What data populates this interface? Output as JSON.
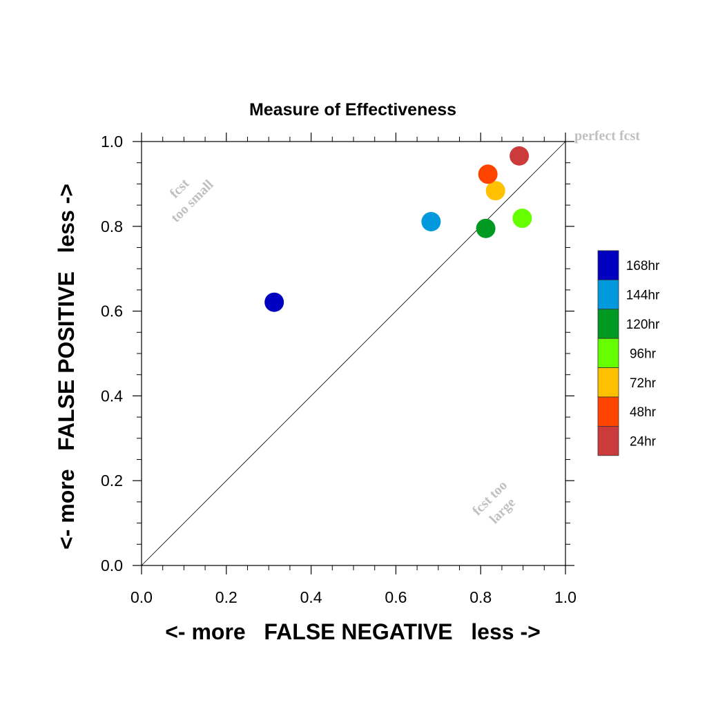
{
  "chart_data": {
    "type": "scatter",
    "title": "Measure of Effectiveness",
    "xlabel": "<- more   FALSE NEGATIVE   less ->",
    "ylabel": "<- more   FALSE POSITIVE   less ->",
    "xlim": [
      0,
      1
    ],
    "ylim": [
      0,
      1
    ],
    "xticks": [
      "0.0",
      "0.2",
      "0.4",
      "0.6",
      "0.8",
      "1.0"
    ],
    "yticks": [
      "0.0",
      "0.2",
      "0.4",
      "0.6",
      "0.8",
      "1.0"
    ],
    "grid": false,
    "diagonal_reference_line": true,
    "annotations": {
      "perfect": "perfect fcst",
      "too_small": [
        "fcst",
        "too small"
      ],
      "too_large": [
        "fcst too",
        "large"
      ]
    },
    "legend_position": "right",
    "series": [
      {
        "name": "168hr",
        "color": "#0000c0",
        "x": 0.313,
        "y": 0.621
      },
      {
        "name": "144hr",
        "color": "#0099dd",
        "x": 0.683,
        "y": 0.811
      },
      {
        "name": "120hr",
        "color": "#009922",
        "x": 0.812,
        "y": 0.795
      },
      {
        "name": "96hr",
        "color": "#66ff00",
        "x": 0.898,
        "y": 0.819
      },
      {
        "name": "72hr",
        "color": "#ffc000",
        "x": 0.835,
        "y": 0.884
      },
      {
        "name": "48hr",
        "color": "#ff4400",
        "x": 0.817,
        "y": 0.923
      },
      {
        "name": "24hr",
        "color": "#cc3b3b",
        "x": 0.891,
        "y": 0.966
      }
    ]
  }
}
